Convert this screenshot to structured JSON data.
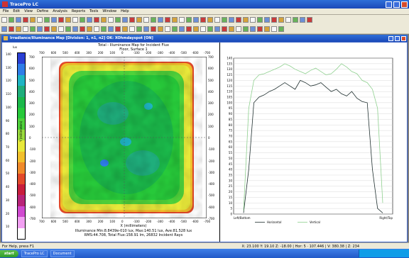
{
  "app_title": "TracePro LC",
  "menu": [
    "File",
    "Edit",
    "View",
    "Define",
    "Analysis",
    "Reports",
    "Tools",
    "Window",
    "Help"
  ],
  "child_window_title": "Irradiance/Illuminance Map [Division: 1, n1, n2] OK: XOhmdayspot [ON]",
  "map": {
    "title1": "Total - Illuminance Map for Incident Flux",
    "title2": "Floor, Surface 1",
    "x_ticks": [
      "700",
      "600",
      "500",
      "400",
      "300",
      "200",
      "100",
      "0",
      "-100",
      "-200",
      "-300",
      "-400",
      "-500",
      "-600",
      "-700"
    ],
    "y_ticks": [
      "700",
      "600",
      "500",
      "400",
      "300",
      "200",
      "100",
      "0",
      "-100",
      "-200",
      "-300",
      "-400",
      "-500",
      "-600",
      "-700"
    ],
    "xlabel": "X (millimeters)",
    "ylabel": "Y (millimeters)",
    "caption1": "Illuminance Min:8.8439e-010 lux, Max:140.51 lux, Ave:81.528 lux",
    "caption2": "RMS:44.708, Total Flux:158.91 lm, 26832 Incident Rays",
    "legend_unit": "lux",
    "legend_ticks": [
      "140",
      "130",
      "120",
      "110",
      "100",
      "90",
      "80",
      "70",
      "60",
      "50",
      "40",
      "30",
      "20",
      "10"
    ]
  },
  "legend_colors": [
    "#2a3fd4",
    "#2f7de8",
    "#1fb4c4",
    "#1fae7c",
    "#1bb84a",
    "#27c93a",
    "#4fd23b",
    "#9bdc3e",
    "#e8e83a",
    "#f2c02c",
    "#f08a2a",
    "#e24a2a",
    "#c81e3c",
    "#b82478",
    "#d04ad0",
    "#f2a0f2",
    "#ffffff"
  ],
  "chart_data": {
    "type": "line",
    "xlabel_left": "Left/Bottom",
    "xlabel_right": "Right/Top",
    "y_ticks": [
      "140",
      "135",
      "130",
      "125",
      "120",
      "115",
      "110",
      "105",
      "100",
      "95",
      "90",
      "85",
      "80",
      "75",
      "70",
      "65",
      "60",
      "55",
      "50",
      "45",
      "40",
      "35",
      "30",
      "25",
      "20",
      "15",
      "10",
      "5",
      "0"
    ],
    "ylim": [
      0,
      140
    ],
    "series": [
      {
        "name": "Horizontal",
        "color": "#1f2f2f",
        "values": [
          1,
          40,
          100,
          105,
          107,
          110,
          112,
          115,
          118,
          115,
          112,
          120,
          118,
          115,
          116,
          118,
          114,
          110,
          112,
          108,
          106,
          110,
          104,
          101,
          100,
          40,
          5,
          1
        ]
      },
      {
        "name": "Vertical",
        "color": "#8fd08f",
        "values": [
          3,
          95,
          120,
          125,
          126,
          128,
          130,
          132,
          135,
          133,
          130,
          128,
          126,
          129,
          131,
          128,
          125,
          126,
          130,
          135,
          132,
          128,
          126,
          120,
          118,
          112,
          95,
          10
        ]
      }
    ],
    "legend_placement": "bottom"
  },
  "status": {
    "left": "For Help, press F1",
    "right": "X: 23.100 Y: 19.10 Z: -18.00 | Hor: 5 · 107.446 | V: 380.38 | Z: 234"
  },
  "taskbar": {
    "start": "start",
    "tasks": [
      "TracePro LC",
      "Document"
    ]
  },
  "icons": {
    "minimize": "minimize-icon",
    "maximize": "maximize-icon",
    "close": "close-icon"
  }
}
